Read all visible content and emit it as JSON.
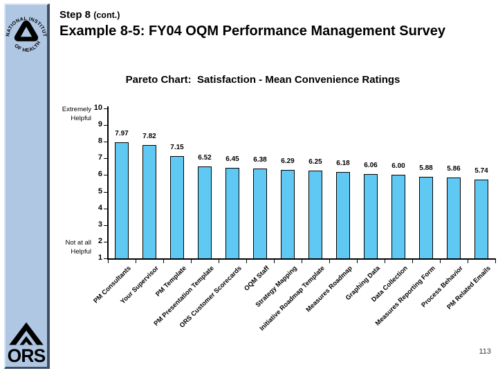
{
  "header": {
    "step": "Step 8 ",
    "cont": "(cont.)",
    "title": "Example 8-5: FY04 OQM Performance Management Survey"
  },
  "sidebar": {
    "nih_arc_top": "NATIONAL INSTITUTES",
    "nih_arc_bottom": "OF HEALTH",
    "ors_label": "ORS"
  },
  "footer": {
    "page_number": "113"
  },
  "colors": {
    "sidebar_bg": "#b0c7e3",
    "sidebar_edge_dark": "#3d4d66",
    "sidebar_edge_light": "#d9e4f4",
    "bar_fill": "#5fc9f3",
    "bar_border": "#000000",
    "text": "#000000"
  },
  "chart_data": {
    "type": "bar",
    "title": "Pareto Chart:  Satisfaction - Mean Convenience Ratings",
    "categories": [
      "PM Consultants",
      "Your Supervisor",
      "PM Template",
      "PM Presentation Template",
      "ORS Customer Scorecards",
      "OQM Staff",
      "Strategy Mapping",
      "Initiative Roadmap Template",
      "Measures Roadmap",
      "Graphing Data",
      "Data Collection",
      "Measures Reporting Form",
      "Process Behavior",
      "PM Related Emails"
    ],
    "values": [
      7.97,
      7.82,
      7.15,
      6.52,
      6.45,
      6.38,
      6.29,
      6.25,
      6.18,
      6.06,
      6.0,
      5.88,
      5.86,
      5.74
    ],
    "value_labels": [
      "7.97",
      "7.82",
      "7.15",
      "6.52",
      "6.45",
      "6.38",
      "6.29",
      "6.25",
      "6.18",
      "6.06",
      "6.00",
      "5.88",
      "5.86",
      "5.74"
    ],
    "xlabel": "",
    "ylabel": "",
    "ylim": [
      1,
      10
    ],
    "y_ticks": [
      1,
      2,
      3,
      4,
      5,
      6,
      7,
      8,
      9,
      10
    ],
    "y_axis_top_label_1": "Extremely",
    "y_axis_top_label_2": "Helpful",
    "y_axis_bottom_label_1": "Not at all",
    "y_axis_bottom_label_2": "Helpful",
    "grid": false,
    "legend": "none",
    "data_labels": true
  }
}
